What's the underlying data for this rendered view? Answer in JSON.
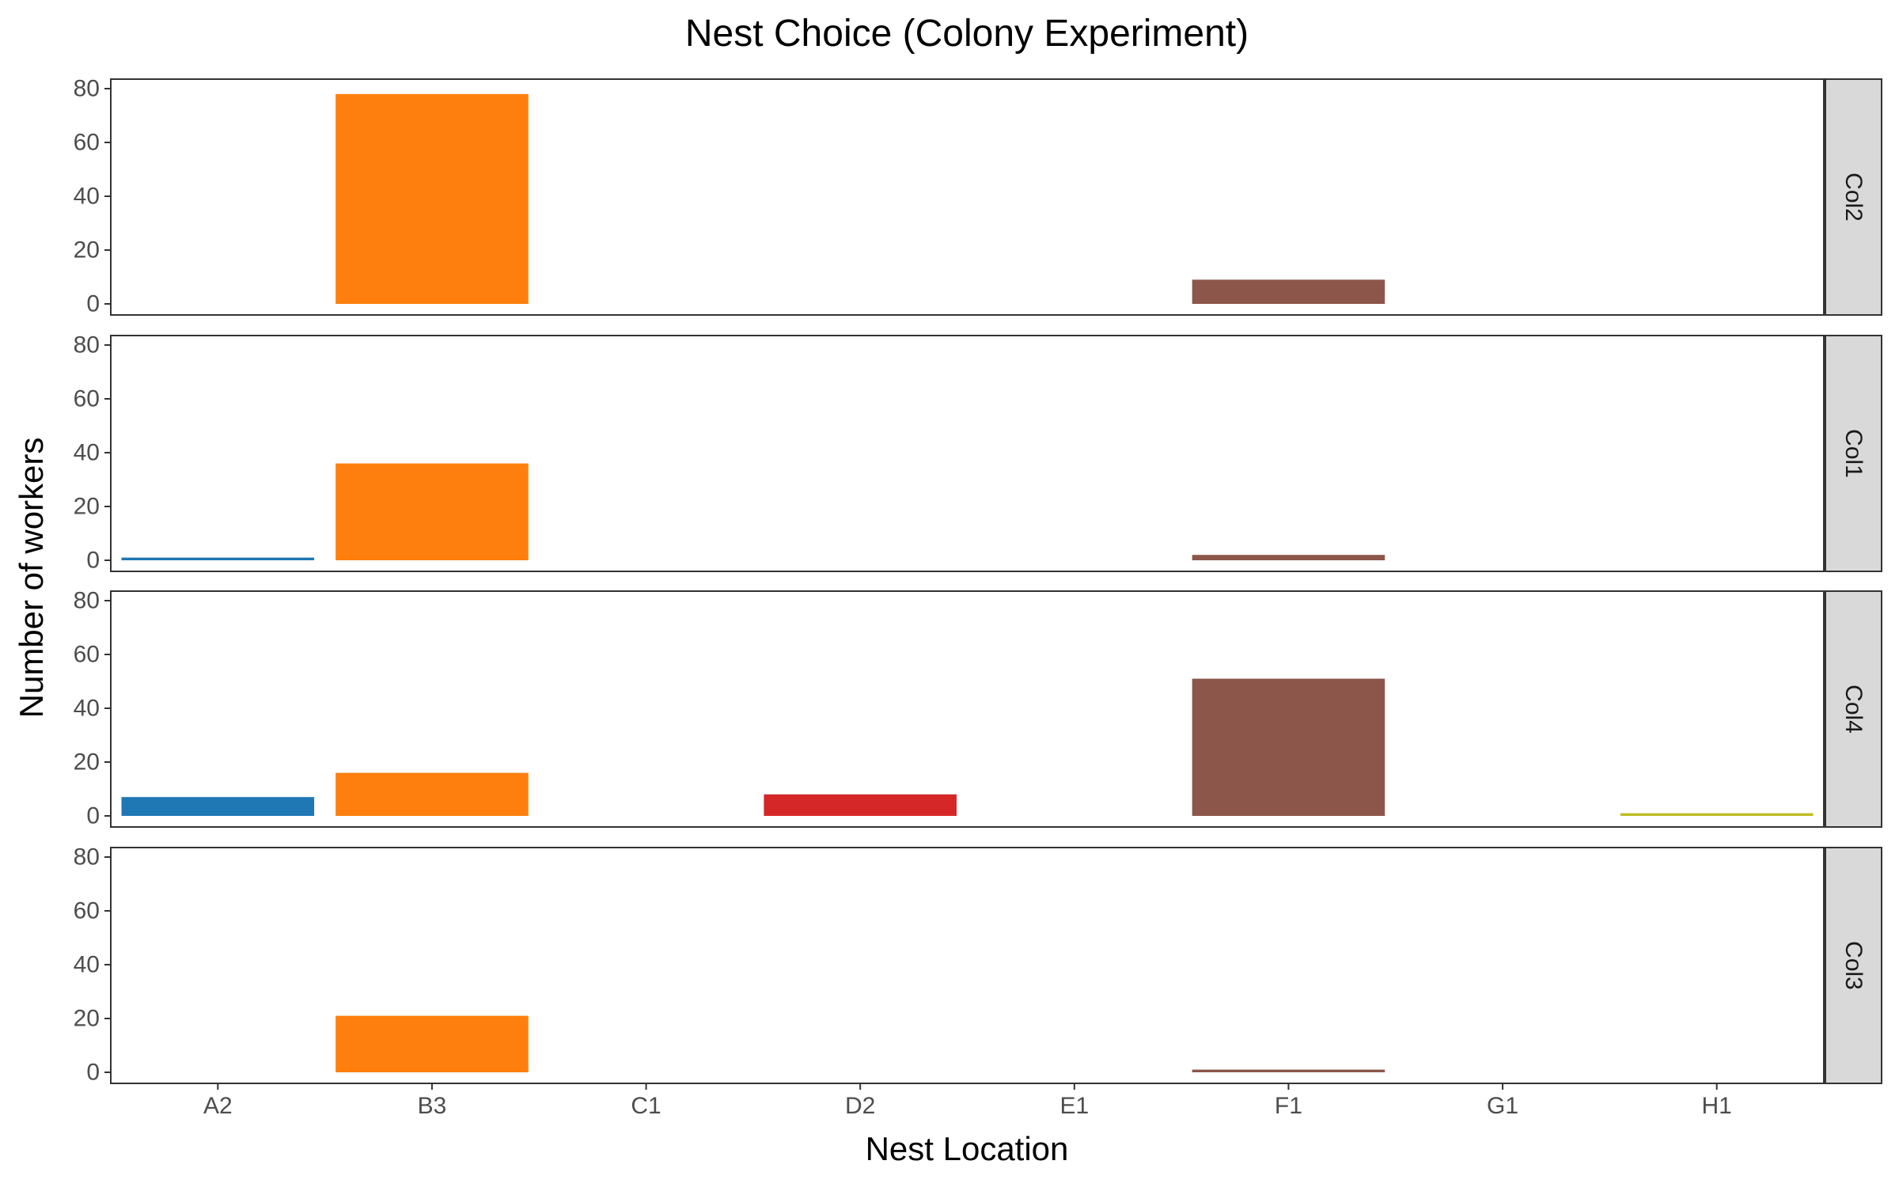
{
  "chart_data": {
    "type": "bar",
    "title": "Nest Choice (Colony Experiment)",
    "xlabel": "Nest Location",
    "ylabel": "Number of workers",
    "categories": [
      "A2",
      "B3",
      "C1",
      "D2",
      "E1",
      "F1",
      "G1",
      "H1"
    ],
    "ylim": [
      0,
      80
    ],
    "yticks": [
      0,
      20,
      40,
      60,
      80
    ],
    "grid": false,
    "legend": "none",
    "facet": "rows",
    "colors": {
      "A2": "#1f77b4",
      "B3": "#ff7f0e",
      "C1": "#2ca02c",
      "D2": "#d62728",
      "E1": "#9467bd",
      "F1": "#8c564b",
      "G1": "#e377c2",
      "H1": "#bcbd22"
    },
    "panels": [
      {
        "label": "Col2",
        "values": [
          0,
          78,
          0,
          0,
          0,
          9,
          0,
          0
        ]
      },
      {
        "label": "Col1",
        "values": [
          1,
          36,
          0,
          0,
          0,
          2,
          0,
          0
        ]
      },
      {
        "label": "Col4",
        "values": [
          7,
          16,
          0,
          8,
          0,
          51,
          0,
          1
        ]
      },
      {
        "label": "Col3",
        "values": [
          0,
          21,
          0,
          0,
          0,
          1,
          0,
          0
        ]
      }
    ]
  }
}
